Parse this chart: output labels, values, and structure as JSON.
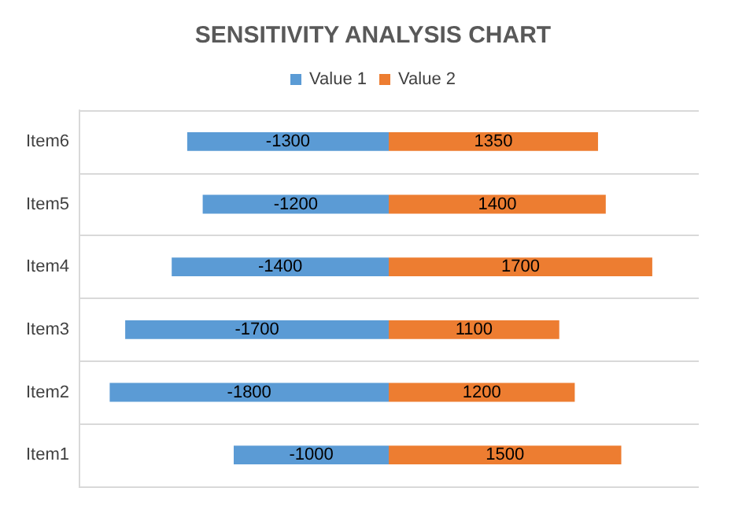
{
  "chart_data": {
    "type": "bar",
    "title": "SENSITIVITY ANALYSIS CHART",
    "orientation": "horizontal",
    "stacked": true,
    "categories": [
      "Item6",
      "Item5",
      "Item4",
      "Item3",
      "Item2",
      "Item1"
    ],
    "series": [
      {
        "name": "Value 1",
        "color": "#5b9bd5",
        "values": [
          -1300,
          -1200,
          -1400,
          -1700,
          -1800,
          -1000
        ]
      },
      {
        "name": "Value 2",
        "color": "#ed7d31",
        "values": [
          1350,
          1400,
          1700,
          1100,
          1200,
          1500
        ]
      }
    ],
    "data_labels": true,
    "legend": "top",
    "grid": "y"
  }
}
